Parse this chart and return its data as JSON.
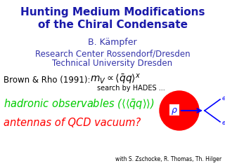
{
  "title_line1": "Hunting Medium Modifications",
  "title_line2": "of the Chiral Condensate",
  "title_color": "#1a1aaa",
  "author": "B. Kämpfer",
  "affiliation1": "Research Center Rossendorf/Dresden",
  "affiliation2": "Technical University Dresden",
  "brown_rho_label": "Brown & Rho (1991):",
  "search_text": "search by HADES ...",
  "hadronic_color": "#00CC00",
  "antennas_text": "antennas of QCD vacuum?",
  "antennas_color": "#FF0000",
  "footer_text": "with S. Zschocke, R. Thomas, Th. Hilger",
  "background_color": "#FFFFFF",
  "body_color": "#000000",
  "rho_circle_color": "#FF0000",
  "arrow_color": "#0000FF",
  "rho_label_color": "#FFFFFF",
  "affil_color": "#3333AA"
}
